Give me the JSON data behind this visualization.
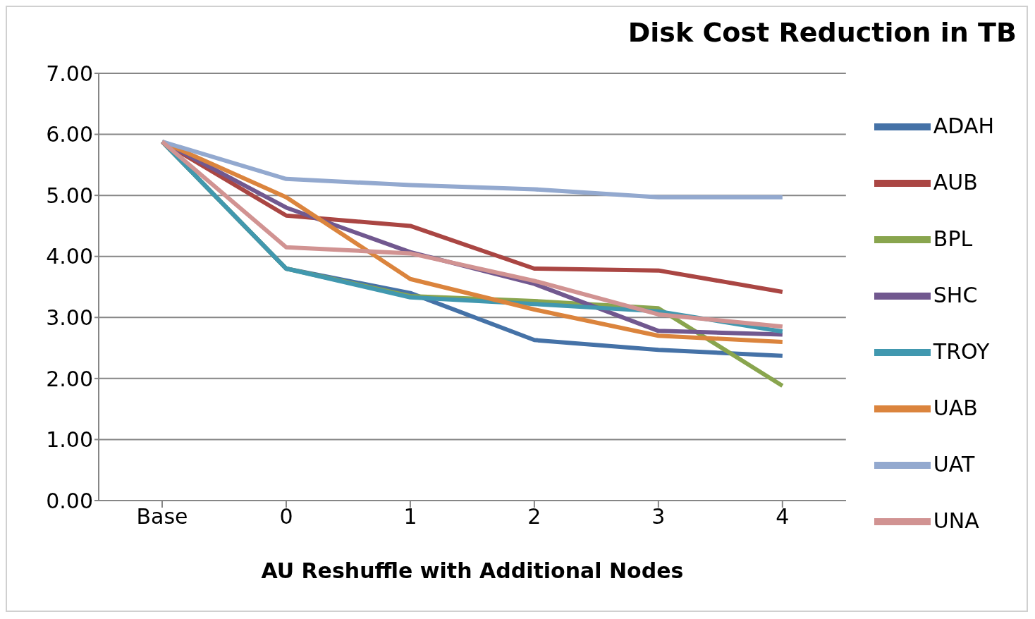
{
  "chart_data": {
    "type": "line",
    "title": "Disk Cost Reduction in TB",
    "xlabel": "AU Reshuffle with Additional  Nodes",
    "categories": [
      "Base",
      "0",
      "1",
      "2",
      "3",
      "4"
    ],
    "series": [
      {
        "name": "ADAH",
        "color": "#4572a7",
        "values": [
          5.88,
          3.8,
          3.4,
          2.63,
          2.47,
          2.37
        ]
      },
      {
        "name": "AUB",
        "color": "#aa4643",
        "values": [
          5.88,
          4.67,
          4.5,
          3.8,
          3.77,
          3.42
        ]
      },
      {
        "name": "BPL",
        "color": "#89a54e",
        "values": [
          5.88,
          3.8,
          3.35,
          3.27,
          3.15,
          1.88
        ]
      },
      {
        "name": "SHC",
        "color": "#71588f",
        "values": [
          5.88,
          4.8,
          4.07,
          3.55,
          2.78,
          2.72
        ]
      },
      {
        "name": "TROY",
        "color": "#4198af",
        "values": [
          5.88,
          3.8,
          3.33,
          3.22,
          3.1,
          2.77
        ]
      },
      {
        "name": "UAB",
        "color": "#db843d",
        "values": [
          5.88,
          4.97,
          3.63,
          3.13,
          2.7,
          2.6
        ]
      },
      {
        "name": "UAT",
        "color": "#93a9cf",
        "values": [
          5.88,
          5.27,
          5.17,
          5.1,
          4.97,
          4.97
        ]
      },
      {
        "name": "UNA",
        "color": "#d19392",
        "values": [
          5.88,
          4.15,
          4.05,
          3.6,
          3.05,
          2.85
        ]
      }
    ],
    "ylim": [
      0,
      7
    ],
    "yticks": [
      {
        "value": 0,
        "label": "0.00"
      },
      {
        "value": 1,
        "label": "1.00"
      },
      {
        "value": 2,
        "label": "2.00"
      },
      {
        "value": 3,
        "label": "3.00"
      },
      {
        "value": 4,
        "label": "4.00"
      },
      {
        "value": 5,
        "label": "5.00"
      },
      {
        "value": 6,
        "label": "6.00"
      },
      {
        "value": 7,
        "label": "7.00"
      }
    ],
    "grid": "y",
    "legend": "right",
    "marker": "none",
    "line_style": "solid"
  }
}
